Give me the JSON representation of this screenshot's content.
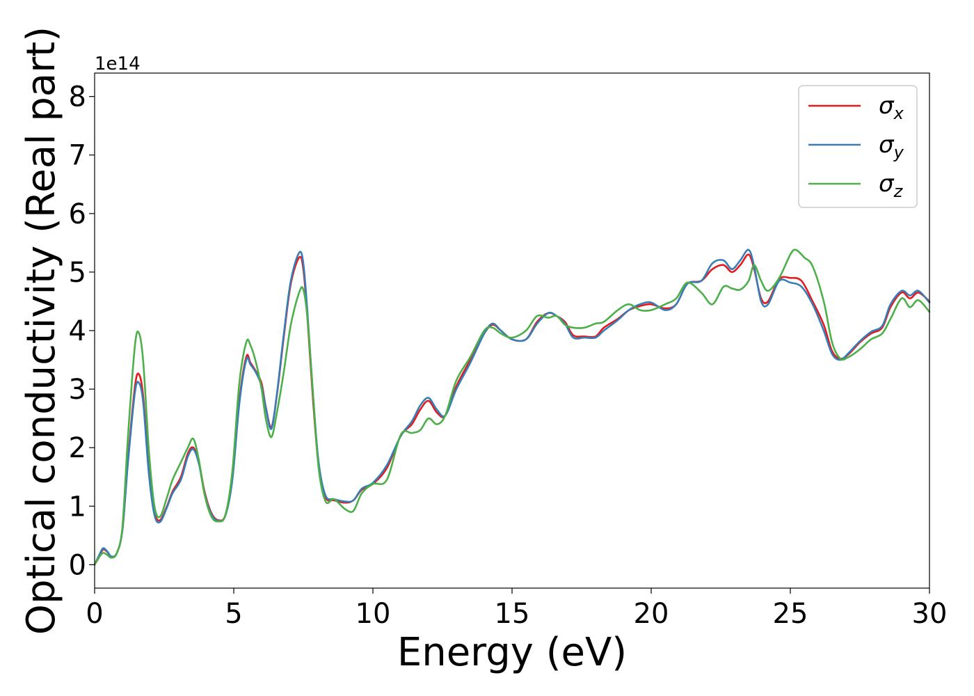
{
  "chart_data": {
    "type": "line",
    "xlabel": "Energy (eV)",
    "ylabel": "Optical conductivity (Real part)",
    "y_offset_label": "1e14",
    "xlim": [
      0,
      30
    ],
    "ylim": [
      -0.4,
      8.4
    ],
    "x_ticks": [
      0,
      5,
      10,
      15,
      20,
      25,
      30
    ],
    "y_ticks": [
      0,
      1,
      2,
      3,
      4,
      5,
      6,
      7,
      8
    ],
    "grid": false,
    "legend_position": "top-right",
    "series": [
      {
        "name": "σx",
        "symbol": "σ",
        "subscript": "x",
        "color": "#e41a1c",
        "points": [
          [
            0,
            0
          ],
          [
            0.15,
            0.12
          ],
          [
            0.3,
            0.26
          ],
          [
            0.45,
            0.22
          ],
          [
            0.6,
            0.14
          ],
          [
            0.8,
            0.2
          ],
          [
            1,
            0.6
          ],
          [
            1.2,
            1.8
          ],
          [
            1.45,
            3.05
          ],
          [
            1.6,
            3.25
          ],
          [
            1.75,
            2.85
          ],
          [
            1.95,
            1.6
          ],
          [
            2.15,
            0.9
          ],
          [
            2.35,
            0.76
          ],
          [
            2.6,
            1
          ],
          [
            2.8,
            1.25
          ],
          [
            3.1,
            1.5
          ],
          [
            3.35,
            1.9
          ],
          [
            3.55,
            2
          ],
          [
            3.75,
            1.75
          ],
          [
            3.95,
            1.25
          ],
          [
            4.2,
            0.88
          ],
          [
            4.45,
            0.76
          ],
          [
            4.7,
            0.85
          ],
          [
            4.95,
            1.5
          ],
          [
            5.2,
            2.8
          ],
          [
            5.45,
            3.55
          ],
          [
            5.6,
            3.45
          ],
          [
            5.8,
            3.3
          ],
          [
            6,
            3.1
          ],
          [
            6.15,
            2.7
          ],
          [
            6.35,
            2.35
          ],
          [
            6.55,
            2.9
          ],
          [
            6.8,
            3.9
          ],
          [
            7.05,
            4.8
          ],
          [
            7.35,
            5.25
          ],
          [
            7.5,
            5.05
          ],
          [
            7.65,
            4.2
          ],
          [
            7.85,
            2.8
          ],
          [
            8.05,
            1.7
          ],
          [
            8.3,
            1.15
          ],
          [
            8.6,
            1.1
          ],
          [
            9,
            1.06
          ],
          [
            9.3,
            1.1
          ],
          [
            9.6,
            1.28
          ],
          [
            10,
            1.38
          ],
          [
            10.5,
            1.65
          ],
          [
            11,
            2.2
          ],
          [
            11.4,
            2.4
          ],
          [
            11.7,
            2.65
          ],
          [
            12,
            2.8
          ],
          [
            12.3,
            2.6
          ],
          [
            12.6,
            2.55
          ],
          [
            13,
            3.05
          ],
          [
            13.5,
            3.5
          ],
          [
            14,
            3.95
          ],
          [
            14.3,
            4.1
          ],
          [
            14.6,
            4
          ],
          [
            15,
            3.85
          ],
          [
            15.5,
            3.85
          ],
          [
            15.9,
            4.15
          ],
          [
            16.3,
            4.3
          ],
          [
            16.6,
            4.25
          ],
          [
            16.9,
            4.15
          ],
          [
            17.2,
            3.92
          ],
          [
            17.6,
            3.9
          ],
          [
            18,
            3.9
          ],
          [
            18.3,
            4.05
          ],
          [
            18.8,
            4.2
          ],
          [
            19.2,
            4.35
          ],
          [
            19.6,
            4.42
          ],
          [
            20,
            4.45
          ],
          [
            20.5,
            4.38
          ],
          [
            20.9,
            4.45
          ],
          [
            21.3,
            4.8
          ],
          [
            21.8,
            4.85
          ],
          [
            22.2,
            5.05
          ],
          [
            22.6,
            5.12
          ],
          [
            22.9,
            5
          ],
          [
            23.2,
            5.12
          ],
          [
            23.5,
            5.3
          ],
          [
            23.7,
            5.05
          ],
          [
            23.95,
            4.55
          ],
          [
            24.2,
            4.5
          ],
          [
            24.6,
            4.88
          ],
          [
            25,
            4.9
          ],
          [
            25.4,
            4.85
          ],
          [
            25.8,
            4.5
          ],
          [
            26.2,
            4.1
          ],
          [
            26.5,
            3.65
          ],
          [
            26.8,
            3.52
          ],
          [
            27.1,
            3.6
          ],
          [
            27.5,
            3.8
          ],
          [
            27.9,
            3.95
          ],
          [
            28.3,
            4.05
          ],
          [
            28.6,
            4.4
          ],
          [
            29,
            4.65
          ],
          [
            29.3,
            4.55
          ],
          [
            29.6,
            4.65
          ],
          [
            30,
            4.5
          ]
        ]
      },
      {
        "name": "σy",
        "symbol": "σ",
        "subscript": "y",
        "color": "#377eb8",
        "points": [
          [
            0,
            0
          ],
          [
            0.15,
            0.15
          ],
          [
            0.3,
            0.28
          ],
          [
            0.45,
            0.23
          ],
          [
            0.6,
            0.14
          ],
          [
            0.8,
            0.2
          ],
          [
            1,
            0.6
          ],
          [
            1.2,
            1.75
          ],
          [
            1.45,
            2.95
          ],
          [
            1.6,
            3.1
          ],
          [
            1.75,
            2.75
          ],
          [
            1.95,
            1.55
          ],
          [
            2.15,
            0.85
          ],
          [
            2.35,
            0.73
          ],
          [
            2.6,
            0.98
          ],
          [
            2.8,
            1.22
          ],
          [
            3.1,
            1.45
          ],
          [
            3.35,
            1.85
          ],
          [
            3.55,
            1.97
          ],
          [
            3.75,
            1.72
          ],
          [
            3.95,
            1.22
          ],
          [
            4.2,
            0.86
          ],
          [
            4.45,
            0.75
          ],
          [
            4.7,
            0.84
          ],
          [
            4.95,
            1.45
          ],
          [
            5.2,
            2.75
          ],
          [
            5.45,
            3.5
          ],
          [
            5.6,
            3.42
          ],
          [
            5.8,
            3.28
          ],
          [
            6,
            3.05
          ],
          [
            6.15,
            2.68
          ],
          [
            6.35,
            2.32
          ],
          [
            6.55,
            2.92
          ],
          [
            6.8,
            3.95
          ],
          [
            7.05,
            4.85
          ],
          [
            7.35,
            5.33
          ],
          [
            7.5,
            5.15
          ],
          [
            7.65,
            4.3
          ],
          [
            7.85,
            2.9
          ],
          [
            8.05,
            1.75
          ],
          [
            8.3,
            1.18
          ],
          [
            8.6,
            1.12
          ],
          [
            9,
            1.08
          ],
          [
            9.3,
            1.1
          ],
          [
            9.6,
            1.3
          ],
          [
            10,
            1.4
          ],
          [
            10.5,
            1.7
          ],
          [
            11,
            2.2
          ],
          [
            11.4,
            2.45
          ],
          [
            11.7,
            2.72
          ],
          [
            12,
            2.85
          ],
          [
            12.3,
            2.65
          ],
          [
            12.6,
            2.55
          ],
          [
            13,
            3
          ],
          [
            13.5,
            3.45
          ],
          [
            14,
            3.95
          ],
          [
            14.3,
            4.12
          ],
          [
            14.6,
            4
          ],
          [
            15,
            3.85
          ],
          [
            15.5,
            3.85
          ],
          [
            15.9,
            4.12
          ],
          [
            16.3,
            4.3
          ],
          [
            16.6,
            4.25
          ],
          [
            16.9,
            4.12
          ],
          [
            17.2,
            3.88
          ],
          [
            17.6,
            3.88
          ],
          [
            18,
            3.88
          ],
          [
            18.3,
            4
          ],
          [
            18.8,
            4.18
          ],
          [
            19.2,
            4.35
          ],
          [
            19.6,
            4.45
          ],
          [
            20,
            4.48
          ],
          [
            20.5,
            4.35
          ],
          [
            20.9,
            4.45
          ],
          [
            21.3,
            4.8
          ],
          [
            21.8,
            4.85
          ],
          [
            22.2,
            5.15
          ],
          [
            22.6,
            5.2
          ],
          [
            22.9,
            5.05
          ],
          [
            23.2,
            5.2
          ],
          [
            23.5,
            5.38
          ],
          [
            23.7,
            5.1
          ],
          [
            23.95,
            4.5
          ],
          [
            24.2,
            4.45
          ],
          [
            24.6,
            4.85
          ],
          [
            25,
            4.82
          ],
          [
            25.4,
            4.75
          ],
          [
            25.8,
            4.45
          ],
          [
            26.2,
            4
          ],
          [
            26.5,
            3.6
          ],
          [
            26.8,
            3.5
          ],
          [
            27.1,
            3.62
          ],
          [
            27.5,
            3.82
          ],
          [
            27.9,
            3.98
          ],
          [
            28.3,
            4.08
          ],
          [
            28.6,
            4.45
          ],
          [
            29,
            4.68
          ],
          [
            29.3,
            4.6
          ],
          [
            29.6,
            4.68
          ],
          [
            30,
            4.48
          ]
        ]
      },
      {
        "name": "σz",
        "symbol": "σ",
        "subscript": "z",
        "color": "#4daf4a",
        "points": [
          [
            0,
            0
          ],
          [
            0.15,
            0.12
          ],
          [
            0.3,
            0.2
          ],
          [
            0.45,
            0.17
          ],
          [
            0.6,
            0.12
          ],
          [
            0.8,
            0.2
          ],
          [
            1,
            0.65
          ],
          [
            1.2,
            2.2
          ],
          [
            1.45,
            3.75
          ],
          [
            1.6,
            3.95
          ],
          [
            1.75,
            3.45
          ],
          [
            1.95,
            1.95
          ],
          [
            2.15,
            1
          ],
          [
            2.35,
            0.82
          ],
          [
            2.6,
            1.15
          ],
          [
            2.8,
            1.45
          ],
          [
            3.1,
            1.75
          ],
          [
            3.35,
            2
          ],
          [
            3.55,
            2.15
          ],
          [
            3.75,
            1.78
          ],
          [
            3.95,
            1.2
          ],
          [
            4.2,
            0.82
          ],
          [
            4.45,
            0.74
          ],
          [
            4.7,
            0.85
          ],
          [
            4.95,
            1.6
          ],
          [
            5.2,
            3.1
          ],
          [
            5.45,
            3.8
          ],
          [
            5.6,
            3.75
          ],
          [
            5.8,
            3.45
          ],
          [
            6,
            3
          ],
          [
            6.15,
            2.5
          ],
          [
            6.35,
            2.18
          ],
          [
            6.55,
            2.6
          ],
          [
            6.8,
            3.3
          ],
          [
            7.05,
            4.1
          ],
          [
            7.35,
            4.65
          ],
          [
            7.5,
            4.7
          ],
          [
            7.65,
            4.2
          ],
          [
            7.85,
            2.9
          ],
          [
            8.05,
            1.65
          ],
          [
            8.3,
            1.08
          ],
          [
            8.6,
            1.12
          ],
          [
            9,
            0.95
          ],
          [
            9.3,
            0.92
          ],
          [
            9.6,
            1.22
          ],
          [
            10,
            1.38
          ],
          [
            10.5,
            1.45
          ],
          [
            11,
            2.22
          ],
          [
            11.4,
            2.25
          ],
          [
            11.7,
            2.3
          ],
          [
            12,
            2.5
          ],
          [
            12.3,
            2.4
          ],
          [
            12.6,
            2.55
          ],
          [
            13,
            3.15
          ],
          [
            13.5,
            3.55
          ],
          [
            14,
            4
          ],
          [
            14.3,
            4.05
          ],
          [
            14.6,
            3.95
          ],
          [
            15,
            3.88
          ],
          [
            15.5,
            4
          ],
          [
            15.9,
            4.25
          ],
          [
            16.3,
            4.22
          ],
          [
            16.6,
            4.25
          ],
          [
            16.9,
            4.1
          ],
          [
            17.2,
            4.05
          ],
          [
            17.6,
            4.05
          ],
          [
            18,
            4.12
          ],
          [
            18.3,
            4.15
          ],
          [
            18.8,
            4.35
          ],
          [
            19.2,
            4.45
          ],
          [
            19.6,
            4.35
          ],
          [
            20,
            4.35
          ],
          [
            20.5,
            4.45
          ],
          [
            20.9,
            4.55
          ],
          [
            21.3,
            4.82
          ],
          [
            21.8,
            4.65
          ],
          [
            22.2,
            4.45
          ],
          [
            22.6,
            4.75
          ],
          [
            22.9,
            4.72
          ],
          [
            23.2,
            4.7
          ],
          [
            23.5,
            4.85
          ],
          [
            23.7,
            5.12
          ],
          [
            23.95,
            4.85
          ],
          [
            24.2,
            4.68
          ],
          [
            24.6,
            4.9
          ],
          [
            25,
            5.3
          ],
          [
            25.2,
            5.38
          ],
          [
            25.5,
            5.25
          ],
          [
            25.8,
            5.1
          ],
          [
            26.2,
            4.5
          ],
          [
            26.5,
            3.8
          ],
          [
            26.8,
            3.52
          ],
          [
            27.1,
            3.55
          ],
          [
            27.5,
            3.68
          ],
          [
            27.9,
            3.85
          ],
          [
            28.3,
            3.95
          ],
          [
            28.6,
            4.2
          ],
          [
            29,
            4.55
          ],
          [
            29.3,
            4.4
          ],
          [
            29.6,
            4.52
          ],
          [
            30,
            4.32
          ]
        ]
      }
    ]
  }
}
